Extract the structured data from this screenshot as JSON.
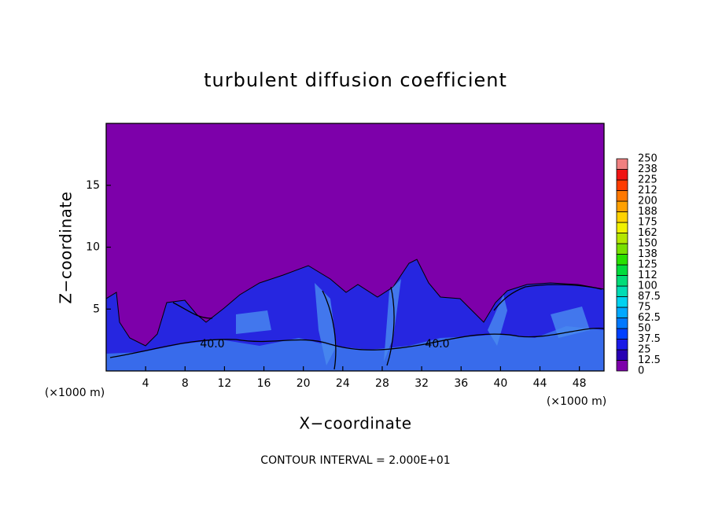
{
  "chart_data": {
    "type": "contour",
    "title": "turbulent diffusion coefficient",
    "xlabel": "X−coordinate",
    "ylabel": "Z−coordinate",
    "x_unit": "(×1000 m)",
    "xlim": [
      0,
      50.5
    ],
    "ylim": [
      0,
      20
    ],
    "xticks": [
      4,
      8,
      12,
      16,
      20,
      24,
      28,
      32,
      36,
      40,
      44,
      48
    ],
    "yticks": [
      5,
      10,
      15
    ],
    "contour_labels": [
      "40.0",
      "40.0"
    ],
    "annotation": "CONTOUR INTERVAL = 2.000E+01",
    "colorbar": {
      "levels": [
        0,
        12.5,
        25,
        37.5,
        50,
        62.5,
        75,
        87.5,
        100,
        {
          "value": 112.5,
          "label": "112"
        },
        125,
        {
          "value": 137.5,
          "label": "138"
        },
        150,
        {
          "value": 162.5,
          "label": "162"
        },
        175,
        {
          "value": 187.5,
          "label": "188"
        },
        200,
        {
          "value": 212.5,
          "label": "212"
        },
        225,
        {
          "value": 237.5,
          "label": "238"
        },
        250
      ],
      "colors": [
        "#7d00aa",
        "#2800b4",
        "#1a1ae6",
        "#0040ff",
        "#0078ff",
        "#00a8ff",
        "#00d2f0",
        "#00dcb4",
        "#00dc78",
        "#00dc3c",
        "#28e000",
        "#78e000",
        "#b4e600",
        "#f0f000",
        "#ffd200",
        "#ffa000",
        "#ff7800",
        "#ff3c00",
        "#f01414",
        "#f08080"
      ]
    }
  }
}
